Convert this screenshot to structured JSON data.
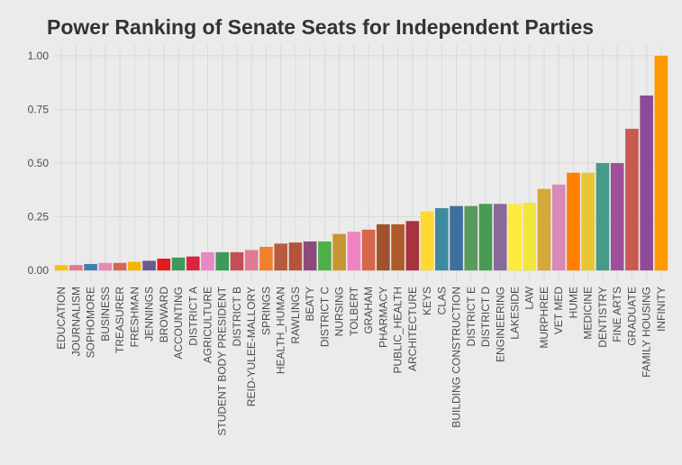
{
  "chart_data": {
    "type": "bar",
    "title": "Power Ranking of Senate Seats for Independent Parties",
    "categories": [
      "EDUCATION",
      "JOURNALISM",
      "SOPHOMORE",
      "BUSINESS",
      "TREASURER",
      "FRESHMAN",
      "JENNINGS",
      "BROWARD",
      "ACCOUNTING",
      "DISTRICT A",
      "AGRICULTURE",
      "STUDENT BODY PRESIDENT",
      "DISTRICT B",
      "REID-YULEE-MALLORY",
      "SPRINGS",
      "HEALTH_HUMAN",
      "RAWLINGS",
      "BEATY",
      "DISTRICT C",
      "NURSING",
      "TOLBERT",
      "GRAHAM",
      "PHARMACY",
      "PUBLIC_HEALTH",
      "ARCHITECTURE",
      "KEYS",
      "CLAS",
      "BUILDING CONSTRUCTION",
      "DISTRICT E",
      "DISTRICT D",
      "ENGINEERING",
      "LAKESIDE",
      "LAW",
      "MURPHREE",
      "VET MED",
      "HUME",
      "MEDICINE",
      "DENTISTRY",
      "FINE ARTS",
      "GRADUATE",
      "FAMILY HOUSING",
      "INFINITY"
    ],
    "values": [
      0.025,
      0.025,
      0.03,
      0.035,
      0.035,
      0.04,
      0.045,
      0.055,
      0.06,
      0.065,
      0.085,
      0.085,
      0.085,
      0.095,
      0.11,
      0.125,
      0.13,
      0.135,
      0.135,
      0.17,
      0.18,
      0.19,
      0.215,
      0.215,
      0.23,
      0.275,
      0.29,
      0.3,
      0.3,
      0.31,
      0.31,
      0.31,
      0.315,
      0.38,
      0.4,
      0.455,
      0.455,
      0.5,
      0.5,
      0.66,
      0.815,
      1.0
    ],
    "colors": [
      "#fdbf11",
      "#e07b8a",
      "#3f7fb0",
      "#e889b5",
      "#d4645c",
      "#f4b400",
      "#6a5a8c",
      "#e41a1c",
      "#3d9a5a",
      "#d7263d",
      "#e78ac3",
      "#3d9a5a",
      "#c44e52",
      "#e07b91",
      "#f07f2e",
      "#b55d3d",
      "#b5533d",
      "#8c4a7c",
      "#4daf4a",
      "#c99530",
      "#f183c0",
      "#d6674a",
      "#a0522d",
      "#b05a2a",
      "#a8323e",
      "#ffd92f",
      "#3f8a9e",
      "#3d6fa0",
      "#5a9a5a",
      "#4a9a55",
      "#8a6a9a",
      "#ffe93a",
      "#f3e63a",
      "#d4a83a",
      "#d889b5",
      "#ff7f00",
      "#e8c535",
      "#469a8a",
      "#a0509a",
      "#c85a50",
      "#8e4a98",
      "#ff9900"
    ],
    "ylim": [
      -0.05,
      1.05
    ],
    "yticks": [
      {
        "value": 0,
        "label": "0.00"
      },
      0.25,
      {
        "value": 0.5,
        "label": "0.50"
      },
      0.75,
      {
        "value": 1,
        "label": "1.00"
      }
    ],
    "grid": true
  }
}
